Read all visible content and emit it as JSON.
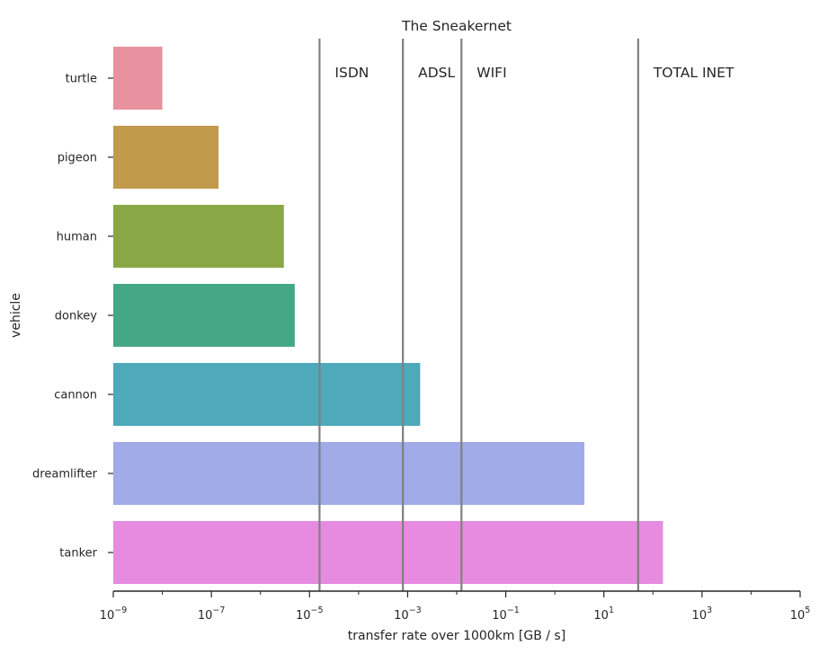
{
  "chart_data": {
    "type": "bar",
    "orientation": "horizontal",
    "title": "The Sneakernet",
    "xlabel": "transfer rate over 1000km [GB / s]",
    "ylabel": "vehicle",
    "xscale": "log",
    "xlim": [
      1e-09,
      100000
    ],
    "xticks": [
      {
        "value": 1e-09,
        "base": "10",
        "exp": "−9"
      },
      {
        "value": 1e-07,
        "base": "10",
        "exp": "−7"
      },
      {
        "value": 1e-05,
        "base": "10",
        "exp": "−5"
      },
      {
        "value": 0.001,
        "base": "10",
        "exp": "−3"
      },
      {
        "value": 0.1,
        "base": "10",
        "exp": "−1"
      },
      {
        "value": 10,
        "base": "10",
        "exp": "1"
      },
      {
        "value": 1000,
        "base": "10",
        "exp": "3"
      },
      {
        "value": 100000,
        "base": "10",
        "exp": "5"
      }
    ],
    "categories": [
      "turtle",
      "pigeon",
      "human",
      "donkey",
      "cannon",
      "dreamlifter",
      "tanker"
    ],
    "values": [
      1e-08,
      1.4e-07,
      3e-06,
      5e-06,
      0.0018,
      4,
      160
    ],
    "colors": [
      "#e8919f",
      "#c19a4b",
      "#89a845",
      "#44a886",
      "#4ea9bb",
      "#a0abe8",
      "#e68be0"
    ],
    "reference_lines": [
      {
        "label": "ISDN",
        "value": 1.6e-05
      },
      {
        "label": "ADSL",
        "value": 0.0008
      },
      {
        "label": "WIFI",
        "value": 0.0125
      },
      {
        "label": "TOTAL INET",
        "value": 50
      }
    ],
    "grid": false
  }
}
